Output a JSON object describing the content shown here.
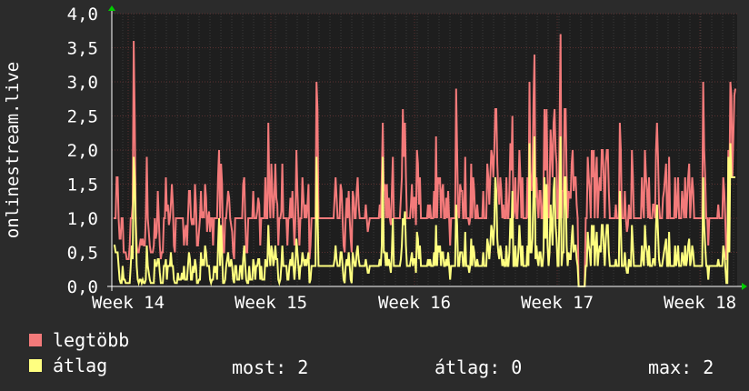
{
  "chart_data": {
    "type": "line",
    "ylabel": "onlinestream.live",
    "ylim": [
      0,
      4
    ],
    "y_ticks": [
      "0,0",
      "0,5",
      "1,0",
      "1,5",
      "2,0",
      "2,5",
      "3,0",
      "3,5",
      "4,0"
    ],
    "x_ticks": [
      "Week 14",
      "Week 15",
      "Week 16",
      "Week 17",
      "Week 18"
    ],
    "grid": true,
    "background": "#1e1e1e",
    "colors": {
      "legtobb": "#f37a7a",
      "atlag": "#ffff80",
      "axis": "#ffffff",
      "arrow": "#00cc00"
    },
    "series": [
      {
        "name": "legtöbb",
        "values": [
          1.0,
          1.0,
          1.0,
          1.6,
          1.6,
          1.0,
          0.7,
          0.7,
          1.0,
          1.0,
          0.5,
          0.5,
          0.5,
          0.4,
          0.4,
          0.4,
          0.6,
          1.0,
          1.0,
          1.2,
          3.6,
          2.5,
          1.0,
          0.6,
          0.5,
          0.5,
          0.6,
          0.7,
          0.6,
          0.7,
          0.6,
          0.6,
          1.0,
          1.9,
          1.0,
          0.8,
          0.6,
          0.5,
          0.5,
          0.5,
          0.6,
          1.0,
          0.7,
          0.8,
          1.4,
          1.0,
          0.6,
          0.4,
          0.5,
          0.5,
          1.0,
          1.0,
          1.6,
          1.1,
          1.2,
          0.9,
          1.0,
          1.2,
          1.5,
          1.2,
          0.6,
          0.5,
          1.0,
          1.0,
          1.0,
          1.0,
          1.0,
          1.0,
          1.0,
          1.0,
          0.6,
          0.8,
          0.9,
          0.6,
          1.0,
          1.4,
          1.4,
          1.0,
          0.9,
          1.0,
          0.9,
          1.5,
          1.2,
          0.6,
          0.6,
          0.8,
          1.0,
          1.4,
          1.0,
          1.1,
          1.0,
          1.5,
          1.3,
          0.8,
          1.0,
          1.1,
          0.8,
          1.0,
          1.0,
          0.6,
          1.0,
          1.0,
          1.0,
          1.0,
          1.6,
          2.0,
          1.0,
          1.8,
          1.5,
          0.5,
          0.5,
          1.0,
          1.0,
          1.2,
          1.4,
          1.3,
          1.0,
          0.9,
          0.8,
          0.5,
          0.4,
          1.0,
          1.0,
          1.0,
          1.0,
          1.0,
          1.0,
          1.0,
          1.0,
          1.5,
          1.6,
          1.0,
          0.5,
          0.5,
          1.0,
          1.0,
          1.0,
          1.0,
          1.0,
          1.4,
          1.0,
          1.0,
          1.0,
          1.1,
          1.3,
          1.2,
          0.6,
          1.0,
          1.0,
          1.0,
          1.0,
          1.6,
          1.0,
          1.0,
          2.4,
          1.4,
          1.0,
          1.8,
          1.4,
          1.0,
          1.3,
          1.8,
          1.3,
          1.2,
          0.6,
          1.0,
          1.0,
          1.1,
          1.8,
          1.0,
          1.0,
          1.0,
          1.0,
          0.6,
          1.0,
          1.0,
          1.3,
          1.0,
          1.4,
          1.0,
          0.6,
          1.0,
          2.0,
          1.4,
          1.0,
          0.6,
          1.0,
          1.0,
          1.6,
          1.3,
          1.0,
          1.2,
          1.0,
          1.2,
          1.5,
          0.4,
          0.6,
          1.0,
          1.0,
          1.0,
          1.0,
          1.0,
          3.0,
          2.6,
          1.0,
          1.0,
          1.0,
          1.0,
          1.0,
          1.0,
          1.0,
          1.0,
          1.0,
          1.0,
          1.0,
          1.0,
          1.0,
          1.0,
          1.0,
          1.0,
          1.3,
          1.6,
          1.3,
          1.0,
          1.0,
          1.0,
          1.5,
          1.4,
          1.0,
          0.6,
          0.5,
          1.0,
          1.3,
          1.0,
          1.4,
          1.0,
          0.7,
          0.5,
          1.4,
          1.3,
          1.0,
          1.0,
          1.4,
          1.6,
          1.2,
          1.0,
          1.0,
          1.0,
          1.0,
          1.0,
          1.0,
          1.2,
          1.0,
          0.8,
          0.9,
          1.0,
          1.0,
          1.0,
          1.0,
          1.0,
          1.0,
          1.0,
          1.0,
          1.0,
          1.0,
          1.2,
          1.0,
          1.6,
          2.4,
          1.4,
          1.5,
          1.0,
          1.5,
          1.0,
          1.3,
          1.0,
          0.9,
          1.4,
          1.9,
          1.0,
          1.0,
          1.0,
          1.0,
          1.0,
          1.0,
          1.0,
          1.3,
          1.6,
          2.6,
          1.9,
          2.4,
          1.6,
          1.0,
          1.0,
          1.0,
          1.0,
          1.2,
          1.5,
          1.0,
          1.3,
          1.3,
          0.9,
          2.0,
          1.8,
          1.2,
          1.6,
          1.0,
          1.0,
          1.0,
          1.0,
          1.0,
          1.0,
          1.0,
          1.2,
          1.0,
          1.2,
          1.0,
          1.0,
          1.0,
          1.4,
          1.0,
          2.2,
          1.0,
          1.6,
          1.5,
          1.6,
          1.0,
          1.4,
          1.5,
          1.0,
          1.0,
          1.3,
          1.0,
          1.4,
          1.0,
          0.6,
          1.0,
          1.0,
          1.0,
          1.0,
          1.0,
          2.9,
          2.0,
          1.1,
          1.0,
          1.5,
          1.4,
          1.4,
          1.0,
          1.0,
          1.9,
          1.0,
          1.0,
          1.0,
          0.9,
          1.0,
          1.8,
          1.0,
          1.6,
          1.4,
          1.0,
          1.0,
          1.2,
          1.0,
          1.0,
          1.0,
          1.0,
          1.0,
          1.4,
          1.0,
          1.0,
          1.0,
          1.8,
          1.6,
          1.2,
          1.6,
          2.0,
          1.9,
          1.6,
          2.0,
          2.6,
          2.6,
          1.8,
          1.4,
          1.2,
          1.6,
          1.4,
          1.0,
          1.2,
          1.0,
          1.0,
          1.6,
          1.0,
          1.0,
          1.4,
          2.1,
          1.7,
          2.5,
          1.0,
          1.1,
          1.6,
          1.0,
          1.0,
          1.4,
          2.0,
          1.6,
          1.0,
          1.6,
          1.0,
          1.0,
          1.0,
          1.0,
          1.6,
          1.0,
          3.0,
          1.5,
          1.4,
          1.7,
          2.7,
          3.4,
          1.3,
          1.6,
          1.2,
          1.0,
          1.4,
          1.4,
          1.0,
          1.0,
          1.4,
          2.6,
          1.7,
          2.6,
          1.6,
          1.0,
          1.4,
          2.3,
          2.0,
          1.6,
          2.4,
          2.6,
          2.0,
          1.8,
          1.0,
          1.0,
          2.3,
          3.7,
          1.0,
          1.4,
          1.4,
          2.6,
          2.6,
          1.6,
          1.0,
          1.4,
          1.3,
          1.3,
          1.8,
          2.0,
          1.4,
          1.6,
          1.6,
          1.2,
          1.0,
          0.0,
          0.0,
          0.0,
          0.0,
          0.0,
          0.0,
          0.0,
          1.0,
          1.0,
          1.9,
          1.6,
          1.4,
          1.0,
          2.0,
          1.6,
          2.0,
          1.0,
          1.6,
          1.9,
          1.0,
          1.4,
          1.6,
          1.4,
          2.0,
          2.0,
          1.6,
          1.0,
          1.8,
          2.0,
          2.0,
          1.4,
          1.0,
          1.0,
          1.0,
          1.0,
          1.0,
          1.0,
          1.2,
          1.0,
          1.0,
          1.0,
          2.4,
          2.0,
          1.0,
          1.0,
          1.0,
          1.4,
          1.0,
          0.8,
          0.9,
          1.2,
          1.0,
          1.0,
          2.0,
          1.6,
          1.0,
          1.0,
          1.0,
          1.0,
          1.0,
          1.0,
          1.0,
          1.0,
          1.6,
          1.2,
          1.0,
          2.0,
          1.6,
          1.4,
          1.0,
          1.6,
          1.0,
          1.0,
          1.0,
          1.2,
          1.2,
          1.0,
          2.0,
          2.4,
          1.9,
          1.2,
          1.0,
          1.0,
          1.0,
          1.3,
          1.4,
          1.6,
          1.8,
          1.0,
          1.0,
          1.9,
          1.0,
          1.0,
          1.0,
          1.0,
          1.0,
          1.6,
          1.0,
          1.2,
          1.6,
          1.0,
          1.0,
          1.0,
          1.4,
          1.2,
          1.0,
          1.6,
          1.0,
          1.3,
          1.6,
          1.8,
          1.0,
          1.3,
          1.6,
          1.4,
          1.0,
          1.0,
          1.0,
          1.0,
          1.0,
          1.0,
          1.0,
          1.0,
          1.0,
          3.0,
          2.0,
          1.6,
          1.0,
          1.0,
          0.6,
          1.0,
          1.0,
          1.0,
          1.0,
          1.0,
          1.0,
          1.0,
          1.0,
          1.0,
          1.2,
          1.0,
          1.0,
          1.0,
          1.0,
          1.6,
          1.4,
          1.0,
          0.4,
          0.4,
          2.0,
          1.4,
          3.0,
          2.8,
          1.6,
          2.2,
          2.8,
          2.9
        ]
      },
      {
        "name": "átlag",
        "values": [
          0.6,
          0.6,
          0.5,
          0.5,
          0.5,
          0.3,
          0.1,
          0.05,
          0.05,
          0.3,
          0.1,
          0.1,
          0.05,
          0.05,
          0.05,
          0.05,
          0.05,
          0.3,
          0.6,
          0.4,
          1.9,
          1.6,
          0.9,
          0.3,
          0.1,
          0.05,
          0.1,
          0.1,
          0.05,
          0.1,
          0.05,
          0.05,
          0.1,
          0.6,
          0.3,
          0.2,
          0.1,
          0.05,
          0.05,
          0.05,
          0.05,
          0.4,
          0.3,
          0.3,
          0.4,
          0.4,
          0.2,
          0.05,
          0.05,
          0.05,
          0.3,
          0.3,
          0.4,
          0.1,
          0.3,
          0.3,
          0.3,
          0.5,
          0.3,
          0.3,
          0.1,
          0.05,
          0.05,
          0.05,
          0.2,
          0.1,
          0.1,
          0.1,
          0.2,
          0.1,
          0.3,
          0.1,
          0.1,
          0.1,
          0.3,
          0.5,
          0.4,
          0.1,
          0.1,
          0.3,
          0.2,
          0.4,
          0.3,
          0.05,
          0.05,
          0.1,
          0.1,
          0.5,
          0.3,
          0.4,
          0.3,
          0.6,
          0.5,
          0.3,
          0.3,
          0.3,
          0.1,
          0.05,
          0.1,
          0.1,
          0.3,
          0.2,
          0.3,
          0.1,
          0.6,
          1.0,
          0.3,
          0.9,
          0.5,
          0.05,
          0.05,
          0.1,
          0.3,
          0.4,
          0.5,
          0.3,
          0.3,
          0.4,
          0.3,
          0.1,
          0.05,
          0.3,
          0.3,
          0.1,
          0.1,
          0.1,
          0.3,
          0.3,
          0.1,
          0.4,
          0.6,
          0.3,
          0.1,
          0.05,
          0.05,
          0.3,
          0.1,
          0.1,
          0.1,
          0.4,
          0.3,
          0.1,
          0.3,
          0.3,
          0.4,
          0.4,
          0.1,
          0.3,
          0.1,
          0.1,
          0.1,
          0.4,
          0.3,
          0.3,
          0.9,
          0.5,
          0.3,
          0.6,
          0.5,
          0.3,
          0.4,
          0.6,
          0.4,
          0.4,
          0.1,
          0.05,
          0.1,
          0.3,
          0.6,
          0.3,
          0.3,
          0.3,
          0.3,
          0.1,
          0.1,
          0.3,
          0.4,
          0.3,
          0.5,
          0.3,
          0.1,
          0.3,
          0.7,
          0.5,
          0.3,
          0.1,
          0.3,
          0.3,
          0.5,
          0.4,
          0.3,
          0.4,
          0.3,
          0.4,
          0.5,
          0.05,
          0.1,
          0.3,
          0.3,
          0.3,
          0.3,
          0.3,
          1.9,
          1.2,
          0.3,
          0.3,
          0.3,
          0.3,
          0.3,
          0.3,
          0.3,
          0.3,
          0.3,
          0.3,
          0.3,
          0.3,
          0.3,
          0.3,
          0.3,
          0.3,
          0.4,
          0.6,
          0.4,
          0.3,
          0.3,
          0.3,
          0.5,
          0.5,
          0.3,
          0.1,
          0.05,
          0.3,
          0.4,
          0.3,
          0.5,
          0.3,
          0.1,
          0.05,
          0.5,
          0.4,
          0.3,
          0.3,
          0.5,
          0.6,
          0.4,
          0.3,
          0.3,
          0.3,
          0.3,
          0.3,
          0.3,
          0.4,
          0.3,
          0.2,
          0.2,
          0.3,
          0.3,
          0.3,
          0.3,
          0.3,
          0.3,
          0.3,
          0.3,
          0.3,
          0.3,
          0.4,
          0.3,
          0.6,
          1.9,
          0.5,
          0.5,
          0.3,
          0.5,
          0.3,
          0.4,
          0.3,
          0.2,
          0.5,
          1.0,
          0.3,
          0.3,
          0.3,
          0.3,
          0.3,
          0.3,
          0.3,
          0.4,
          0.6,
          1.0,
          0.9,
          1.1,
          0.6,
          0.3,
          0.3,
          0.3,
          0.3,
          0.4,
          0.5,
          0.3,
          0.4,
          0.4,
          0.2,
          0.8,
          0.7,
          0.4,
          0.6,
          0.3,
          0.3,
          0.3,
          0.3,
          0.3,
          0.3,
          0.3,
          0.4,
          0.3,
          0.4,
          0.3,
          0.3,
          0.3,
          0.5,
          0.3,
          0.9,
          0.3,
          0.6,
          0.5,
          0.6,
          0.3,
          0.5,
          0.5,
          0.3,
          0.3,
          0.4,
          0.3,
          0.5,
          0.3,
          0.1,
          0.3,
          0.3,
          0.3,
          0.3,
          0.3,
          1.2,
          0.9,
          0.3,
          0.3,
          0.5,
          0.5,
          0.5,
          0.3,
          0.3,
          0.8,
          0.3,
          0.3,
          0.3,
          0.2,
          0.3,
          0.7,
          0.3,
          0.6,
          0.5,
          0.3,
          0.3,
          0.4,
          0.3,
          0.3,
          0.3,
          0.3,
          0.3,
          0.5,
          0.3,
          0.3,
          0.3,
          0.7,
          0.6,
          0.4,
          0.6,
          0.9,
          0.8,
          0.6,
          0.9,
          1.6,
          1.4,
          0.7,
          0.5,
          0.4,
          0.6,
          0.5,
          0.3,
          0.4,
          0.3,
          0.3,
          0.6,
          0.3,
          0.3,
          0.5,
          1.0,
          0.7,
          1.4,
          0.3,
          0.3,
          0.6,
          0.3,
          0.3,
          0.5,
          0.9,
          0.6,
          0.3,
          0.6,
          0.3,
          0.3,
          0.3,
          0.3,
          0.6,
          0.3,
          2.1,
          0.5,
          0.5,
          0.7,
          1.4,
          2.2,
          0.4,
          0.6,
          0.4,
          0.3,
          0.5,
          0.5,
          0.3,
          0.3,
          0.5,
          1.6,
          0.7,
          1.5,
          0.6,
          0.3,
          0.5,
          1.2,
          0.9,
          0.6,
          1.4,
          1.6,
          0.9,
          0.7,
          0.3,
          0.3,
          1.2,
          2.2,
          0.3,
          0.5,
          0.5,
          1.6,
          1.6,
          0.6,
          0.3,
          0.5,
          0.4,
          0.4,
          0.7,
          0.9,
          0.5,
          0.6,
          0.6,
          0.4,
          0.3,
          0.0,
          0.0,
          0.0,
          0.0,
          0.0,
          0.0,
          0.0,
          0.3,
          0.3,
          0.8,
          0.6,
          0.5,
          0.3,
          0.9,
          0.6,
          0.9,
          0.3,
          0.6,
          0.8,
          0.3,
          0.5,
          0.6,
          0.5,
          0.9,
          0.9,
          0.6,
          0.3,
          0.7,
          0.9,
          0.9,
          0.5,
          0.3,
          0.3,
          0.3,
          0.3,
          0.3,
          0.3,
          0.4,
          0.3,
          0.3,
          0.3,
          1.4,
          0.9,
          0.3,
          0.3,
          0.3,
          0.5,
          0.3,
          0.2,
          0.2,
          0.4,
          0.3,
          0.3,
          0.9,
          0.6,
          0.3,
          0.3,
          0.3,
          0.3,
          0.3,
          0.3,
          0.3,
          0.3,
          0.6,
          0.4,
          0.3,
          0.9,
          0.6,
          0.5,
          0.3,
          0.6,
          0.3,
          0.3,
          0.3,
          0.4,
          0.4,
          0.3,
          0.9,
          1.2,
          0.8,
          0.4,
          0.3,
          0.3,
          0.3,
          0.4,
          0.5,
          0.6,
          0.7,
          0.3,
          0.3,
          0.8,
          0.3,
          0.3,
          0.3,
          0.3,
          0.3,
          0.6,
          0.3,
          0.4,
          0.6,
          0.3,
          0.3,
          0.3,
          0.5,
          0.4,
          0.3,
          0.6,
          0.3,
          0.4,
          0.6,
          0.7,
          0.3,
          0.4,
          0.6,
          0.5,
          0.3,
          0.3,
          0.3,
          0.3,
          0.3,
          0.3,
          0.3,
          0.3,
          0.3,
          1.6,
          0.9,
          0.6,
          0.3,
          0.3,
          0.1,
          0.3,
          0.3,
          0.3,
          0.3,
          0.3,
          0.3,
          0.3,
          0.3,
          0.3,
          0.4,
          0.3,
          0.3,
          0.3,
          0.3,
          0.6,
          0.5,
          0.3,
          0.05,
          0.05,
          1.9,
          0.5,
          2.1,
          1.6,
          1.6,
          1.6,
          1.6,
          1.6
        ]
      }
    ]
  },
  "legend": {
    "max_label": "legtöbb",
    "avg_label": "átlag",
    "stat_now": "most: 2",
    "stat_avg": "átlag: 0",
    "stat_max": "max: 2"
  }
}
